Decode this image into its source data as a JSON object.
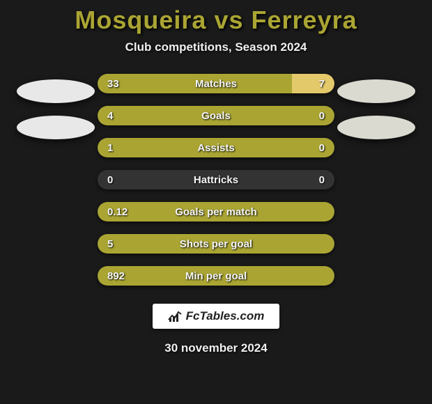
{
  "title": "Mosqueira vs Ferreyra",
  "subtitle": "Club competitions, Season 2024",
  "date": "30 november 2024",
  "logo_text": "FcTables.com",
  "colors": {
    "bar_left": "#aaa533",
    "bar_right": "#e4c96b",
    "bar_empty": "#333333",
    "title": "#aaa533"
  },
  "stats": [
    {
      "label": "Matches",
      "left_val": "33",
      "right_val": "7",
      "left_pct": 82,
      "right_pct": 18
    },
    {
      "label": "Goals",
      "left_val": "4",
      "right_val": "0",
      "left_pct": 100,
      "right_pct": 0
    },
    {
      "label": "Assists",
      "left_val": "1",
      "right_val": "0",
      "left_pct": 100,
      "right_pct": 0
    },
    {
      "label": "Hattricks",
      "left_val": "0",
      "right_val": "0",
      "left_pct": 0,
      "right_pct": 0
    },
    {
      "label": "Goals per match",
      "left_val": "0.12",
      "right_val": "",
      "left_pct": 100,
      "right_pct": 0
    },
    {
      "label": "Shots per goal",
      "left_val": "5",
      "right_val": "",
      "left_pct": 100,
      "right_pct": 0
    },
    {
      "label": "Min per goal",
      "left_val": "892",
      "right_val": "",
      "left_pct": 100,
      "right_pct": 0
    }
  ]
}
